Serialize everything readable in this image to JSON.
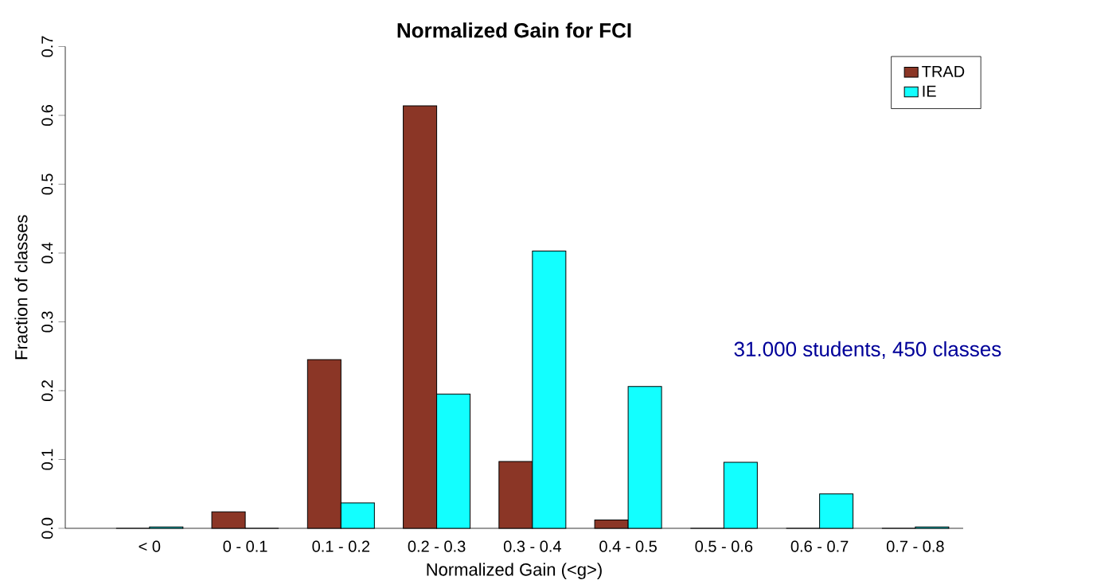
{
  "chart_data": {
    "type": "bar",
    "title": "Normalized Gain for FCI",
    "xlabel": "Normalized Gain (<g>)",
    "ylabel": "Fraction of classes",
    "categories": [
      "< 0",
      "0 - 0.1",
      "0.1 - 0.2",
      "0.2 - 0.3",
      "0.3 - 0.4",
      "0.4 - 0.5",
      "0.5 - 0.6",
      "0.6 - 0.7",
      "0.7 - 0.8"
    ],
    "series": [
      {
        "name": "TRAD",
        "color": "#8b3626",
        "values": [
          0,
          0.024,
          0.245,
          0.614,
          0.097,
          0.012,
          0,
          0,
          0
        ]
      },
      {
        "name": "IE",
        "color": "#12ffff",
        "values": [
          0.002,
          0,
          0.037,
          0.195,
          0.403,
          0.206,
          0.096,
          0.05,
          0.002
        ]
      }
    ],
    "ylim": [
      0,
      0.7
    ],
    "yticks": [
      {
        "value": 0,
        "label": "0.0"
      },
      0.1,
      0.2,
      0.3,
      0.4,
      0.5,
      0.6,
      0.7
    ],
    "legend": "top right",
    "annotations": [
      "31.000 students, 450 classes"
    ]
  }
}
